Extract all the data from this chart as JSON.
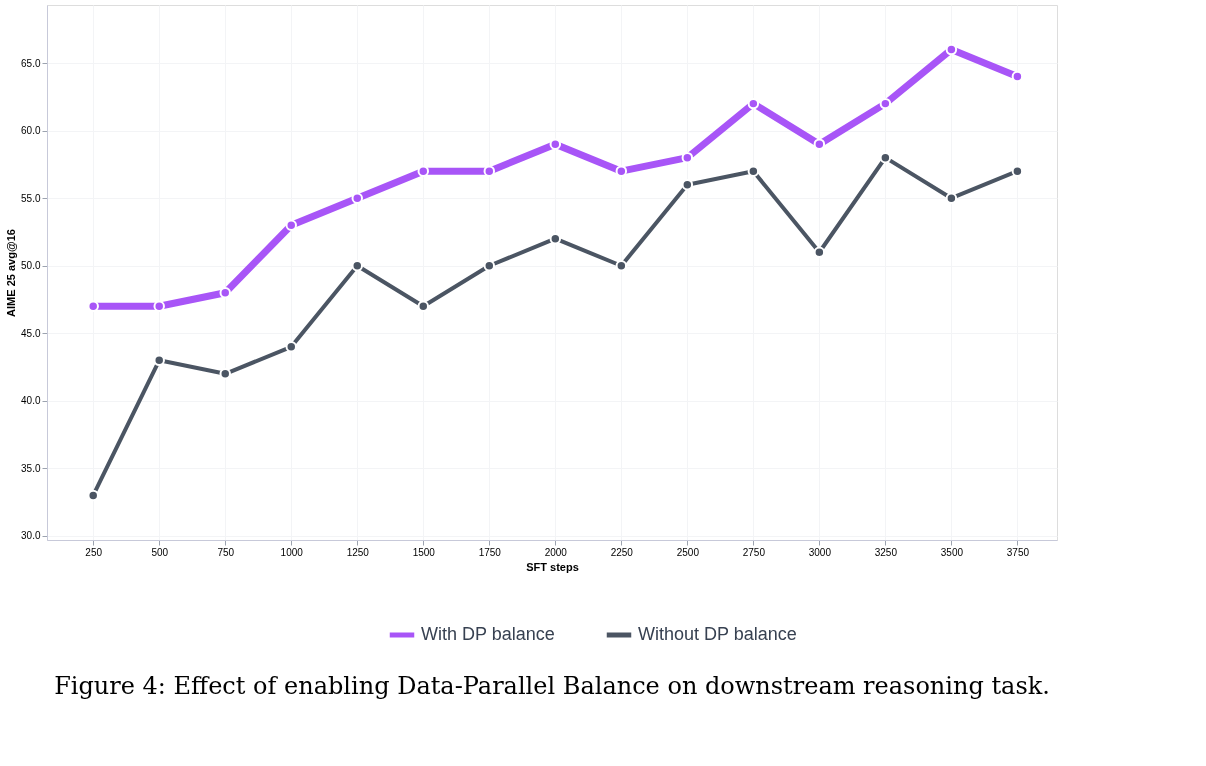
{
  "chart_data": {
    "type": "line",
    "xlabel": "SFT steps",
    "ylabel": "AIME 25 avg@16",
    "categories": [
      "250",
      "500",
      "750",
      "1000",
      "1250",
      "1500",
      "1750",
      "2000",
      "2250",
      "2500",
      "2750",
      "3000",
      "3250",
      "3500",
      "3750"
    ],
    "series": [
      {
        "name": "With DP balance",
        "color": "#a855f7",
        "values": [
          47,
          47,
          48,
          53,
          55,
          57,
          57,
          59,
          57,
          58,
          62,
          59,
          62,
          66,
          64
        ]
      },
      {
        "name": "Without DP balance",
        "color": "#4b5563",
        "values": [
          33,
          43,
          42,
          44,
          50,
          47,
          50,
          52,
          50,
          56,
          57,
          51,
          58,
          55,
          57
        ]
      }
    ],
    "ylim": [
      29.7,
      69.3
    ],
    "yticks": [
      {
        "value": 30,
        "label": "30.0"
      },
      {
        "value": 35,
        "label": "35.0"
      },
      {
        "value": 40,
        "label": "40.0"
      },
      {
        "value": 45,
        "label": "45.0"
      },
      {
        "value": 50,
        "label": "50.0"
      },
      {
        "value": 55,
        "label": "55.0"
      },
      {
        "value": 60,
        "label": "60.0"
      },
      {
        "value": 65,
        "label": "65.0"
      }
    ],
    "grid": true,
    "legend": "bottom",
    "marker": "circle",
    "line_style": "solid",
    "annotations": [
      "Figure 4: Effect of enabling Data-Parallel Balance on downstream reasoning task."
    ]
  }
}
